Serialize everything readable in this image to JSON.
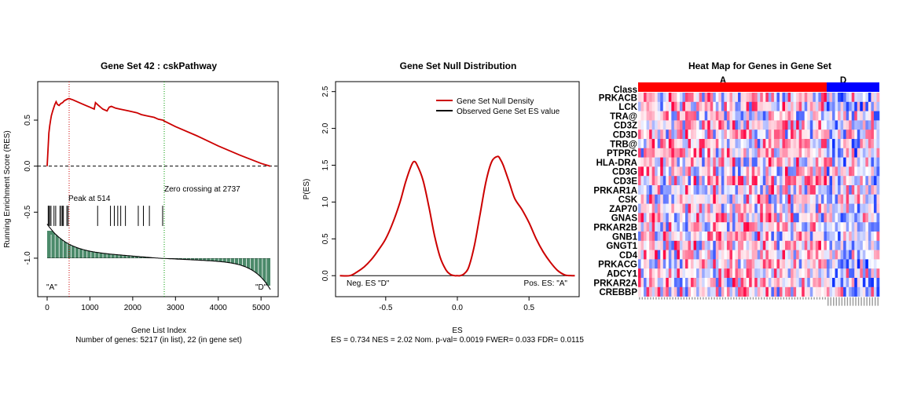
{
  "colors": {
    "running_es": "#cc0000",
    "null_density": "#cc0000",
    "ranked_fill": "#4b8a6a",
    "peak_line": "#cc0000",
    "zero_cross_line": "#009900",
    "class_a": "#ff0000",
    "class_d": "#0000ff"
  },
  "chart_data": [
    {
      "type": "line",
      "title": "Gene Set  42 : cskPathway",
      "xlabel": "Gene List Index",
      "ylabel": "Running Enrichment Score (RES)",
      "xlim": [
        0,
        5217
      ],
      "ylim": [
        -1.35,
        0.85
      ],
      "x_ticks": [
        0,
        1000,
        2000,
        3000,
        4000,
        5000
      ],
      "y_ticks": [
        -1.0,
        -0.5,
        0.0,
        0.5
      ],
      "x_tick_labels": [
        "0",
        "1000",
        "2000",
        "3000",
        "4000",
        "5000"
      ],
      "y_tick_labels": [
        "-1.0",
        "-0.5",
        "0.0",
        "0.5"
      ],
      "subtitle": "Number of genes: 5217 (in list), 22 (in gene set)",
      "series": [
        {
          "x": [
            0,
            20,
            40,
            60,
            80,
            100,
            130,
            150,
            180,
            210,
            240,
            280,
            320,
            360,
            400,
            440,
            480,
            514,
            600,
            700,
            800,
            900,
            1000,
            1100,
            1130,
            1200,
            1300,
            1400,
            1450,
            1500,
            1600,
            1700,
            1800,
            1900,
            2000,
            2100,
            2200,
            2300,
            2400,
            2500,
            2600,
            2700,
            2737,
            3000,
            3500,
            4000,
            4500,
            5000,
            5217
          ],
          "y": [
            0.0,
            0.18,
            0.36,
            0.44,
            0.5,
            0.55,
            0.6,
            0.63,
            0.67,
            0.7,
            0.67,
            0.66,
            0.68,
            0.69,
            0.71,
            0.72,
            0.73,
            0.734,
            0.72,
            0.7,
            0.68,
            0.66,
            0.64,
            0.62,
            0.69,
            0.66,
            0.62,
            0.6,
            0.64,
            0.65,
            0.63,
            0.62,
            0.61,
            0.6,
            0.59,
            0.58,
            0.56,
            0.55,
            0.54,
            0.53,
            0.51,
            0.5,
            0.49,
            0.43,
            0.33,
            0.22,
            0.12,
            0.03,
            0.0
          ]
        }
      ],
      "hits": [
        25,
        35,
        60,
        90,
        160,
        200,
        300,
        330,
        360,
        380,
        460,
        490,
        1180,
        1480,
        1570,
        1650,
        1720,
        1830,
        2130,
        2250,
        2390,
        2700
      ],
      "peak_index": 514,
      "zero_crossing": 2737,
      "annotations": [
        "Peak at 514",
        "Zero crossing at 2737",
        "\"A\"",
        "\"D\""
      ]
    },
    {
      "type": "line",
      "title": "Gene Set Null Distribution",
      "xlabel": "ES",
      "ylabel": "P(ES)",
      "xlim": [
        -0.85,
        0.85
      ],
      "ylim": [
        -0.2,
        2.55
      ],
      "x_ticks": [
        -0.5,
        0.0,
        0.5
      ],
      "y_ticks": [
        0.0,
        0.5,
        1.0,
        1.5,
        2.0,
        2.5
      ],
      "x_tick_labels": [
        "-0.5",
        "0.0",
        "0.5"
      ],
      "y_tick_labels": [
        "0.0",
        "0.5",
        "1.0",
        "1.5",
        "2.0",
        "2.5"
      ],
      "legend": [
        "Gene Set Null Density",
        "Observed Gene Set ES value"
      ],
      "legend_position": "top-right",
      "left_label": "Neg. ES \"D\"",
      "right_label": "Pos. ES: \"A\"",
      "subtitle": "ES = 0.734  NES = 2.02 Nom. p-val= 0.0019 FWER= 0.033 FDR= 0.0115",
      "series": [
        {
          "name": "Gene Set Null Density",
          "x": [
            -0.82,
            -0.75,
            -0.7,
            -0.65,
            -0.6,
            -0.55,
            -0.5,
            -0.45,
            -0.4,
            -0.36,
            -0.32,
            -0.3,
            -0.28,
            -0.24,
            -0.2,
            -0.16,
            -0.12,
            -0.08,
            -0.05,
            -0.02,
            0.0,
            0.02,
            0.05,
            0.08,
            0.12,
            0.16,
            0.2,
            0.24,
            0.28,
            0.3,
            0.32,
            0.36,
            0.4,
            0.45,
            0.5,
            0.55,
            0.6,
            0.65,
            0.7,
            0.75,
            0.8,
            0.82
          ],
          "y": [
            0.0,
            0.0,
            0.05,
            0.12,
            0.22,
            0.35,
            0.5,
            0.72,
            1.0,
            1.28,
            1.5,
            1.55,
            1.5,
            1.3,
            0.95,
            0.55,
            0.25,
            0.08,
            0.02,
            0.0,
            0.0,
            0.0,
            0.03,
            0.12,
            0.42,
            0.85,
            1.28,
            1.55,
            1.62,
            1.58,
            1.5,
            1.28,
            1.05,
            0.9,
            0.72,
            0.5,
            0.32,
            0.18,
            0.07,
            0.01,
            0.0,
            0.0
          ]
        }
      ]
    },
    {
      "type": "heatmap",
      "title": "Heat Map for Genes in Gene Set",
      "class_row_label": "Class",
      "classes": [
        {
          "name": "A",
          "samples": 68
        },
        {
          "name": "D",
          "samples": 19
        }
      ],
      "rows": [
        "PRKACB",
        "LCK",
        "TRA@",
        "CD3Z",
        "CD3D",
        "TRB@",
        "PTPRC",
        "HLA-DRA",
        "CD3G",
        "CD3E",
        "PRKAR1A",
        "CSK",
        "ZAP70",
        "GNAS",
        "PRKAR2B",
        "GNB1",
        "GNGT1",
        "CD4",
        "PRKACG",
        "ADCY1",
        "PRKAR2A",
        "CREBBP"
      ],
      "columns": 87,
      "seed": 42
    }
  ]
}
